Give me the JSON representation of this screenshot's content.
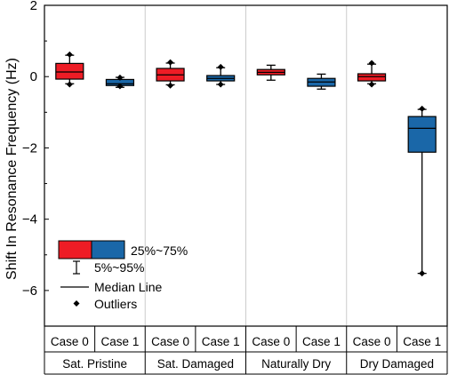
{
  "chart_data": {
    "type": "box",
    "ylabel": "Shift In Resonance Frequency (Hz)",
    "ylim": [
      -7,
      2
    ],
    "yticks": [
      2,
      0,
      -2,
      -4,
      -6
    ],
    "colors": {
      "Case 0": "#ee1c25",
      "Case 1": "#1a67a8"
    },
    "groups": [
      {
        "name": "Sat. Pristine",
        "cases": [
          {
            "case": "Case 0",
            "q1": -0.07,
            "median": 0.13,
            "q3": 0.37,
            "p5": -0.2,
            "p95": 0.6,
            "outliers": [
              -0.22,
              0.62
            ]
          },
          {
            "case": "Case 1",
            "q1": -0.25,
            "median": -0.2,
            "q3": -0.08,
            "p5": -0.3,
            "p95": -0.02,
            "outliers": [
              -0.27,
              -0.03
            ]
          }
        ]
      },
      {
        "name": "Sat. Damaged",
        "cases": [
          {
            "case": "Case 0",
            "q1": -0.12,
            "median": 0.05,
            "q3": 0.23,
            "p5": -0.23,
            "p95": 0.38,
            "outliers": [
              -0.25,
              0.4
            ]
          },
          {
            "case": "Case 1",
            "q1": -0.12,
            "median": -0.05,
            "q3": 0.03,
            "p5": -0.22,
            "p95": 0.25,
            "outliers": [
              -0.22,
              0.27
            ]
          }
        ]
      },
      {
        "name": "Naturally Dry",
        "cases": [
          {
            "case": "Case 0",
            "q1": 0.05,
            "median": 0.12,
            "q3": 0.2,
            "p5": -0.1,
            "p95": 0.32,
            "outliers": []
          },
          {
            "case": "Case 1",
            "q1": -0.27,
            "median": -0.15,
            "q3": -0.05,
            "p5": -0.35,
            "p95": 0.07,
            "outliers": []
          }
        ]
      },
      {
        "name": "Dry Damaged",
        "cases": [
          {
            "case": "Case 0",
            "q1": -0.12,
            "median": 0.0,
            "q3": 0.08,
            "p5": -0.2,
            "p95": 0.35,
            "outliers": [
              -0.22,
              0.38
            ]
          },
          {
            "case": "Case 1",
            "q1": -2.12,
            "median": -1.45,
            "q3": -1.12,
            "p5": -5.52,
            "p95": -0.92,
            "outliers": [
              -5.52,
              -0.9
            ]
          }
        ]
      }
    ],
    "legend": {
      "position": "lower-left",
      "items": [
        "25%~75%",
        "5%~95%",
        "Median Line",
        "Outliers"
      ]
    }
  }
}
